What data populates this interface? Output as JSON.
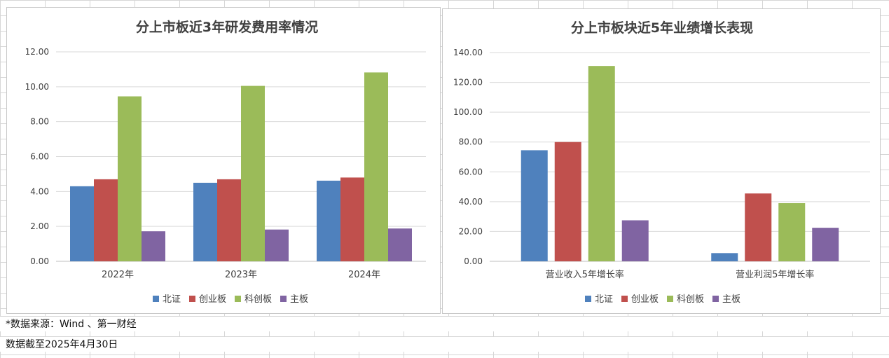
{
  "footer": {
    "source": "*数据来源：Wind 、第一财经",
    "date": "数据截至2025年4月30日"
  },
  "chart_data": [
    {
      "type": "bar",
      "title": "分上市板近3年研发费用率情况",
      "categories": [
        "2022年",
        "2023年",
        "2024年"
      ],
      "series": [
        {
          "name": "北证",
          "color": "#4F81BD",
          "values": [
            4.3,
            4.5,
            4.62
          ]
        },
        {
          "name": "创业板",
          "color": "#C0504D",
          "values": [
            4.7,
            4.7,
            4.8
          ]
        },
        {
          "name": "科创板",
          "color": "#9BBB59",
          "values": [
            9.45,
            10.05,
            10.82
          ]
        },
        {
          "name": "主板",
          "color": "#8064A2",
          "values": [
            1.72,
            1.82,
            1.88
          ]
        }
      ],
      "ylim": [
        0,
        12
      ],
      "yticks": [
        "0.00",
        "2.00",
        "4.00",
        "6.00",
        "8.00",
        "10.00",
        "12.00"
      ],
      "grid": true,
      "legend": "bottom"
    },
    {
      "type": "bar",
      "title": "分上市板块近5年业绩增长表现",
      "categories": [
        "营业收入5年增长率",
        "营业利润5年增长率"
      ],
      "series": [
        {
          "name": "北证",
          "color": "#4F81BD",
          "values": [
            74.5,
            5.5
          ]
        },
        {
          "name": "创业板",
          "color": "#C0504D",
          "values": [
            80.0,
            45.5
          ]
        },
        {
          "name": "科创板",
          "color": "#9BBB59",
          "values": [
            131.0,
            39.0
          ]
        },
        {
          "name": "主板",
          "color": "#8064A2",
          "values": [
            27.5,
            22.5
          ]
        }
      ],
      "ylim": [
        0,
        140
      ],
      "yticks": [
        "0.00",
        "20.00",
        "40.00",
        "60.00",
        "80.00",
        "100.00",
        "120.00",
        "140.00"
      ],
      "grid": true,
      "legend": "bottom"
    }
  ]
}
